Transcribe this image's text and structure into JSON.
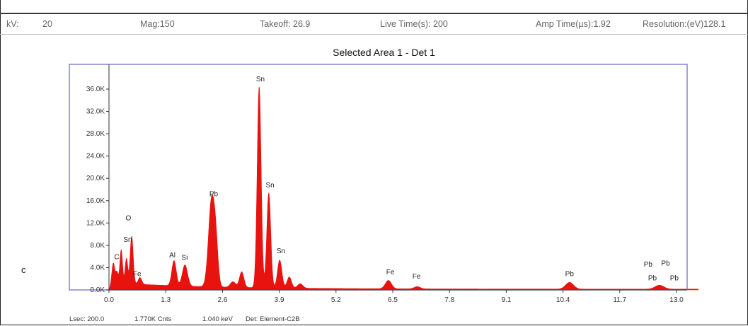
{
  "header": {
    "kv": {
      "label": "kV:",
      "value": "20"
    },
    "mag": "Mag:150",
    "takeoff": "Takeoff: 26.9",
    "live_time": "Live Time(s): 200",
    "amp_time": "Amp Time(µs):1.92",
    "resolution": "Resolution:(eV)128.1"
  },
  "panel_label": "c",
  "footer": {
    "lsec": "Lsec: 200.0",
    "counts": "1.770K Cnts",
    "kev": "1.040 keV",
    "detector": "Det: Element-C2B"
  },
  "chart_data": {
    "type": "area",
    "title": "Selected Area 1 - Det 1",
    "xlabel": "",
    "ylabel": "",
    "xlim": [
      0,
      13.5
    ],
    "ylim": [
      0,
      40000
    ],
    "x_ticks": [
      "0.0",
      "1.3",
      "2.6",
      "3.9",
      "5.2",
      "6.5",
      "7.8",
      "9.1",
      "10.4",
      "11.7",
      "13.0"
    ],
    "y_ticks": [
      "0.0K",
      "4.0K",
      "8.0K",
      "12.0K",
      "16.0K",
      "20.0K",
      "24.0K",
      "28.0K",
      "32.0K",
      "36.0K"
    ],
    "fill_color": "#e8120f",
    "frame_color": "#7b7bcf",
    "grid": false,
    "baseline_counts": 1200,
    "peaks": [
      {
        "x": 0.1,
        "y": 3500,
        "w": 0.03
      },
      {
        "x": 0.18,
        "y": 2000,
        "w": 0.03
      },
      {
        "x": 0.28,
        "y": 6000,
        "w": 0.03
      },
      {
        "x": 0.4,
        "y": 4500,
        "w": 0.03
      },
      {
        "x": 0.52,
        "y": 8500,
        "w": 0.035
      },
      {
        "x": 0.71,
        "y": 1200,
        "w": 0.04
      },
      {
        "x": 1.49,
        "y": 4500,
        "w": 0.05
      },
      {
        "x": 1.74,
        "y": 3800,
        "w": 0.06
      },
      {
        "x": 2.35,
        "y": 15500,
        "w": 0.07
      },
      {
        "x": 2.45,
        "y": 6000,
        "w": 0.05
      },
      {
        "x": 2.84,
        "y": 1000,
        "w": 0.06
      },
      {
        "x": 3.04,
        "y": 2800,
        "w": 0.05
      },
      {
        "x": 3.44,
        "y": 36000,
        "w": 0.045
      },
      {
        "x": 3.66,
        "y": 17000,
        "w": 0.045
      },
      {
        "x": 3.91,
        "y": 5000,
        "w": 0.05
      },
      {
        "x": 4.13,
        "y": 2000,
        "w": 0.05
      },
      {
        "x": 4.38,
        "y": 800,
        "w": 0.06
      },
      {
        "x": 6.4,
        "y": 1500,
        "w": 0.07
      },
      {
        "x": 7.06,
        "y": 400,
        "w": 0.07
      },
      {
        "x": 10.55,
        "y": 1200,
        "w": 0.09
      },
      {
        "x": 12.61,
        "y": 700,
        "w": 0.1
      }
    ],
    "peak_labels": [
      {
        "text": "C",
        "x": 0.12,
        "y": 5500
      },
      {
        "text": "O",
        "x": 0.38,
        "y": 12500
      },
      {
        "text": "Sn",
        "x": 0.33,
        "y": 8600
      },
      {
        "text": "Fe",
        "x": 0.55,
        "y": 2500
      },
      {
        "text": "Al",
        "x": 1.38,
        "y": 5800
      },
      {
        "text": "Si",
        "x": 1.66,
        "y": 5400
      },
      {
        "text": "Pb",
        "x": 2.3,
        "y": 16800
      },
      {
        "text": "Sn",
        "x": 3.37,
        "y": 37400
      },
      {
        "text": "Sn",
        "x": 3.59,
        "y": 18400
      },
      {
        "text": "Sn",
        "x": 3.84,
        "y": 6600
      },
      {
        "text": "Fe",
        "x": 6.35,
        "y": 2800
      },
      {
        "text": "Fe",
        "x": 6.95,
        "y": 2000
      },
      {
        "text": "Pb",
        "x": 10.45,
        "y": 2500
      },
      {
        "text": "Pb",
        "x": 12.25,
        "y": 4200
      },
      {
        "text": "Pb",
        "x": 12.65,
        "y": 4400
      },
      {
        "text": "Pb",
        "x": 12.35,
        "y": 1700
      },
      {
        "text": "Pb",
        "x": 12.85,
        "y": 1700
      }
    ]
  }
}
